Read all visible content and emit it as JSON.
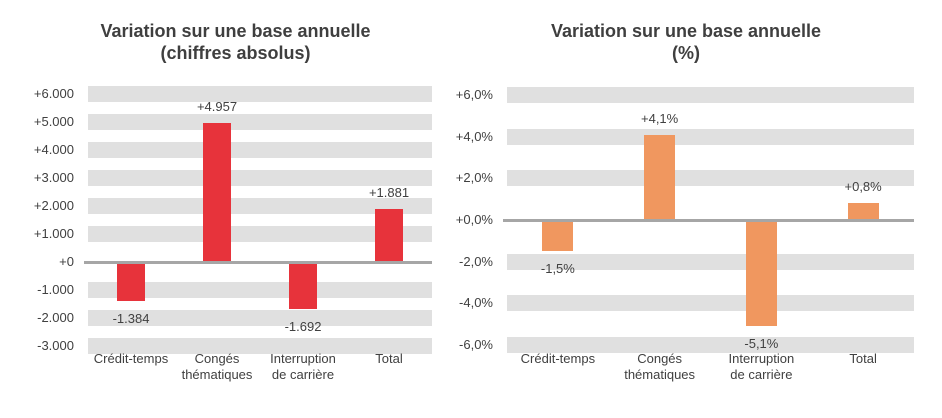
{
  "style": {
    "background": "#ffffff",
    "stripe_color": "#e0e0e0",
    "zero_line_color": "#a6a6a6",
    "text_color": "#404040",
    "title_color": "#3f3f3f"
  },
  "chart_data": [
    {
      "type": "bar",
      "title": "Variation sur une base annuelle",
      "subtitle": "(chiffres absolus)",
      "bar_color": "#e7333b",
      "legend": "none",
      "grid": "striped-horizontal",
      "ylim": [
        -3000,
        6000
      ],
      "y_ticks": [
        {
          "value": 6000,
          "label": "+6.000"
        },
        {
          "value": 5000,
          "label": "+5.000"
        },
        {
          "value": 4000,
          "label": "+4.000"
        },
        {
          "value": 3000,
          "label": "+3.000"
        },
        {
          "value": 2000,
          "label": "+2.000"
        },
        {
          "value": 1000,
          "label": "+1.000"
        },
        {
          "value": 0,
          "label": "+0"
        },
        {
          "value": -1000,
          "label": "-1.000"
        },
        {
          "value": -2000,
          "label": "-2.000"
        },
        {
          "value": -3000,
          "label": "-3.000"
        }
      ],
      "categories": [
        {
          "lines": [
            "Crédit-temps"
          ]
        },
        {
          "lines": [
            "Congés",
            "thématiques"
          ]
        },
        {
          "lines": [
            "Interruption",
            "de carrière"
          ]
        },
        {
          "lines": [
            "Total"
          ]
        }
      ],
      "bars": [
        {
          "value": -1384,
          "label": "-1.384"
        },
        {
          "value": 4957,
          "label": "+4.957"
        },
        {
          "value": -1692,
          "label": "-1.692"
        },
        {
          "value": 1881,
          "label": "+1.881"
        }
      ]
    },
    {
      "type": "bar",
      "title": "Variation sur une base annuelle",
      "subtitle": "(%)",
      "bar_color": "#f0975f",
      "legend": "none",
      "grid": "striped-horizontal",
      "ylim": [
        -6,
        6
      ],
      "y_ticks": [
        {
          "value": 6,
          "label": "+6,0%"
        },
        {
          "value": 4,
          "label": "+4,0%"
        },
        {
          "value": 2,
          "label": "+2,0%"
        },
        {
          "value": 0,
          "label": "+0,0%"
        },
        {
          "value": -2,
          "label": "-2,0%"
        },
        {
          "value": -4,
          "label": "-4,0%"
        },
        {
          "value": -6,
          "label": "-6,0%"
        }
      ],
      "categories": [
        {
          "lines": [
            "Crédit-temps"
          ]
        },
        {
          "lines": [
            "Congés",
            "thématiques"
          ]
        },
        {
          "lines": [
            "Interruption",
            "de carrière"
          ]
        },
        {
          "lines": [
            "Total"
          ]
        }
      ],
      "bars": [
        {
          "value": -1.5,
          "label": "-1,5%"
        },
        {
          "value": 4.1,
          "label": "+4,1%"
        },
        {
          "value": -5.1,
          "label": "-5,1%"
        },
        {
          "value": 0.8,
          "label": "+0,8%"
        }
      ]
    }
  ]
}
